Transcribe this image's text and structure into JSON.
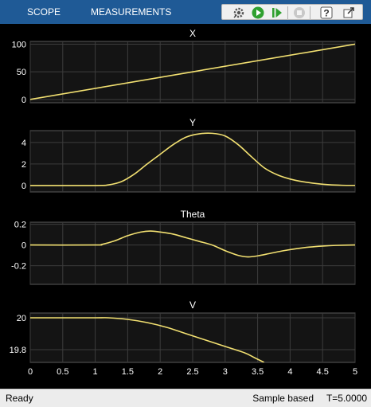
{
  "toolstrip": {
    "tabs": [
      {
        "label": "SCOPE"
      },
      {
        "label": "MEASUREMENTS"
      }
    ],
    "tools": [
      "settings-gear-icon",
      "run-icon",
      "step-forward-icon",
      "stop-icon",
      "help-icon",
      "undock-icon"
    ]
  },
  "status": {
    "state": "Ready",
    "mode": "Sample based",
    "time": "T=5.0000"
  },
  "colors": {
    "trace": "#f2e071",
    "axes_bg": "#141414",
    "grid": "#3c3c3c",
    "tick_text": "#ffffff",
    "toolstrip": "#1f5a96"
  },
  "chart_data": [
    {
      "type": "line",
      "title": "X",
      "x": [
        0,
        5
      ],
      "y": [
        0,
        100
      ],
      "xlim": [
        0,
        5
      ],
      "ylim": [
        -6,
        105
      ],
      "yticks": [
        0,
        50,
        100
      ],
      "xticks": [
        0,
        0.5,
        1,
        1.5,
        2,
        2.5,
        3,
        3.5,
        4,
        4.5,
        5
      ],
      "grid": true
    },
    {
      "type": "line",
      "title": "Y",
      "x": [
        0,
        1,
        1.2,
        1.4,
        1.6,
        1.8,
        2.0,
        2.2,
        2.4,
        2.6,
        2.8,
        3.0,
        3.2,
        3.4,
        3.6,
        3.8,
        4.0,
        4.2,
        4.4,
        4.6,
        4.8,
        5.0
      ],
      "y": [
        0,
        0,
        0.05,
        0.35,
        1.05,
        2.0,
        2.9,
        3.8,
        4.5,
        4.8,
        4.85,
        4.6,
        3.8,
        2.7,
        1.65,
        1.0,
        0.6,
        0.35,
        0.18,
        0.07,
        0.02,
        0.01
      ],
      "xlim": [
        0,
        5
      ],
      "ylim": [
        -0.6,
        5.1
      ],
      "yticks": [
        0,
        2,
        4
      ],
      "xticks": [
        0,
        0.5,
        1,
        1.5,
        2,
        2.5,
        3,
        3.5,
        4,
        4.5,
        5
      ],
      "grid": true
    },
    {
      "type": "line",
      "title": "Theta",
      "x": [
        0,
        1,
        1.1,
        1.3,
        1.5,
        1.7,
        1.85,
        2.0,
        2.2,
        2.4,
        2.6,
        2.8,
        3.0,
        3.2,
        3.35,
        3.5,
        3.7,
        3.9,
        4.1,
        4.3,
        4.5,
        4.7,
        5.0
      ],
      "y": [
        0,
        0,
        0.005,
        0.04,
        0.09,
        0.125,
        0.135,
        0.125,
        0.105,
        0.07,
        0.035,
        0.0,
        -0.055,
        -0.1,
        -0.115,
        -0.105,
        -0.08,
        -0.055,
        -0.035,
        -0.02,
        -0.01,
        -0.004,
        0.0
      ],
      "xlim": [
        0,
        5
      ],
      "ylim": [
        -0.38,
        0.22
      ],
      "yticks": [
        -0.2,
        0,
        0.2
      ],
      "xticks": [
        0,
        0.5,
        1,
        1.5,
        2,
        2.5,
        3,
        3.5,
        4,
        4.5,
        5
      ],
      "grid": true
    },
    {
      "type": "line",
      "title": "V",
      "x": [
        0,
        1,
        1.2,
        1.5,
        1.8,
        2.1,
        2.4,
        2.7,
        3.0,
        3.3,
        3.45,
        3.6
      ],
      "y": [
        20,
        20,
        20,
        19.99,
        19.97,
        19.94,
        19.9,
        19.86,
        19.82,
        19.78,
        19.75,
        19.72
      ],
      "xlim": [
        0,
        5
      ],
      "ylim": [
        19.72,
        20.03
      ],
      "yticks": [
        19.8,
        20
      ],
      "xticks": [
        0,
        0.5,
        1,
        1.5,
        2,
        2.5,
        3,
        3.5,
        4,
        4.5,
        5
      ],
      "xticklabels": [
        "0",
        "0.5",
        "1",
        "1.5",
        "2",
        "2.5",
        "3",
        "3.5",
        "4",
        "4.5",
        "5"
      ],
      "grid": true
    }
  ]
}
